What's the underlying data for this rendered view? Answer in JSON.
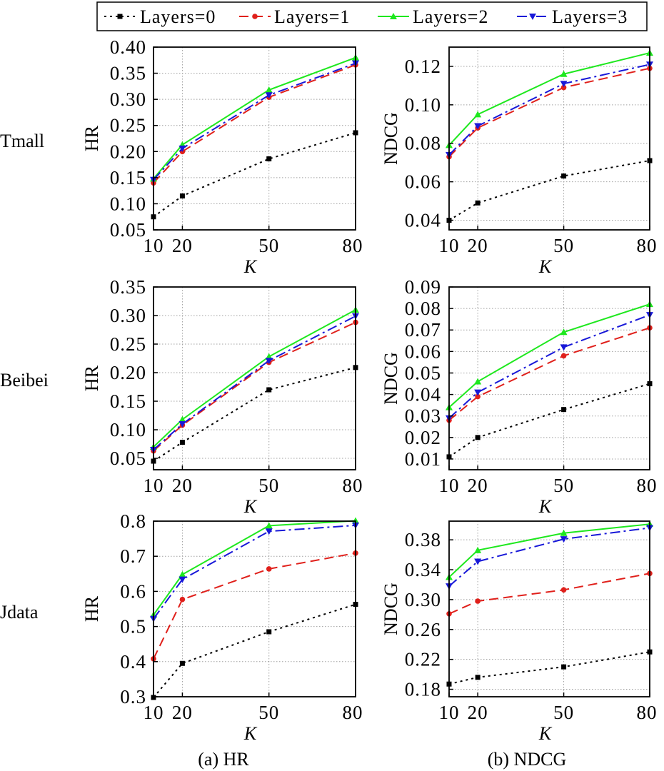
{
  "legend": [
    {
      "name": "Layers=0",
      "color": "#000000",
      "dash": "3,5",
      "marker": "square"
    },
    {
      "name": "Layers=1",
      "color": "#e0201b",
      "dash": "13,7",
      "marker": "circle"
    },
    {
      "name": "Layers=2",
      "color": "#1ee81e",
      "dash": "",
      "marker": "triangle-up"
    },
    {
      "name": "Layers=3",
      "color": "#1818d8",
      "dash": "14,5,3,5",
      "marker": "triangle-down"
    }
  ],
  "captions": {
    "hr": "(a) HR",
    "ndcg": "(b) NDCG"
  },
  "rows": [
    "Tmall",
    "Beibei",
    "Jdata"
  ],
  "chart_data": [
    {
      "type": "line",
      "row": "Tmall",
      "metric": "HR",
      "x": [
        10,
        20,
        50,
        80
      ],
      "xlim": [
        10,
        80
      ],
      "xticks": [
        "10",
        "20",
        "50",
        "80"
      ],
      "xlabel": "K",
      "ylabel": "HR",
      "ylim": [
        0.05,
        0.4
      ],
      "yticks": [
        "0.05",
        "0.10",
        "0.15",
        "0.20",
        "0.25",
        "0.30",
        "0.35",
        "0.40"
      ],
      "grid": true,
      "series": [
        {
          "name": "Layers=0",
          "values": [
            0.075,
            0.115,
            0.186,
            0.236
          ]
        },
        {
          "name": "Layers=1",
          "values": [
            0.14,
            0.2,
            0.304,
            0.366
          ]
        },
        {
          "name": "Layers=2",
          "values": [
            0.148,
            0.213,
            0.318,
            0.38
          ]
        },
        {
          "name": "Layers=3",
          "values": [
            0.146,
            0.206,
            0.308,
            0.369
          ]
        }
      ]
    },
    {
      "type": "line",
      "row": "Tmall",
      "metric": "NDCG",
      "x": [
        10,
        20,
        50,
        80
      ],
      "xlim": [
        10,
        80
      ],
      "xticks": [
        "10",
        "20",
        "50",
        "80"
      ],
      "xlabel": "K",
      "ylabel": "NDCG",
      "ylim": [
        0.035,
        0.13
      ],
      "yticks": [
        "0.04",
        "0.06",
        "0.08",
        "0.10",
        "0.12"
      ],
      "grid": true,
      "series": [
        {
          "name": "Layers=0",
          "values": [
            0.04,
            0.049,
            0.063,
            0.071
          ]
        },
        {
          "name": "Layers=1",
          "values": [
            0.073,
            0.088,
            0.109,
            0.119
          ]
        },
        {
          "name": "Layers=2",
          "values": [
            0.079,
            0.095,
            0.116,
            0.127
          ]
        },
        {
          "name": "Layers=3",
          "values": [
            0.074,
            0.089,
            0.111,
            0.121
          ]
        }
      ]
    },
    {
      "type": "line",
      "row": "Beibei",
      "metric": "HR",
      "x": [
        10,
        20,
        50,
        80
      ],
      "xlim": [
        10,
        80
      ],
      "xticks": [
        "10",
        "20",
        "50",
        "80"
      ],
      "xlabel": "K",
      "ylabel": "HR",
      "ylim": [
        0.03,
        0.35
      ],
      "yticks": [
        "0.05",
        "0.10",
        "0.15",
        "0.20",
        "0.25",
        "0.30",
        "0.35"
      ],
      "grid": true,
      "series": [
        {
          "name": "Layers=0",
          "values": [
            0.045,
            0.078,
            0.17,
            0.209
          ]
        },
        {
          "name": "Layers=1",
          "values": [
            0.063,
            0.108,
            0.218,
            0.288
          ]
        },
        {
          "name": "Layers=2",
          "values": [
            0.07,
            0.118,
            0.228,
            0.31
          ]
        },
        {
          "name": "Layers=3",
          "values": [
            0.065,
            0.11,
            0.221,
            0.299
          ]
        }
      ]
    },
    {
      "type": "line",
      "row": "Beibei",
      "metric": "NDCG",
      "x": [
        10,
        20,
        50,
        80
      ],
      "xlim": [
        10,
        80
      ],
      "xticks": [
        "10",
        "20",
        "50",
        "80"
      ],
      "xlabel": "K",
      "ylabel": "NDCG",
      "ylim": [
        0.005,
        0.09
      ],
      "yticks": [
        "0.01",
        "0.02",
        "0.03",
        "0.04",
        "0.05",
        "0.06",
        "0.07",
        "0.08",
        "0.09"
      ],
      "grid": true,
      "series": [
        {
          "name": "Layers=0",
          "values": [
            0.011,
            0.02,
            0.033,
            0.045
          ]
        },
        {
          "name": "Layers=1",
          "values": [
            0.028,
            0.039,
            0.058,
            0.071
          ]
        },
        {
          "name": "Layers=2",
          "values": [
            0.034,
            0.046,
            0.069,
            0.082
          ]
        },
        {
          "name": "Layers=3",
          "values": [
            0.029,
            0.041,
            0.062,
            0.077
          ]
        }
      ]
    },
    {
      "type": "line",
      "row": "Jdata",
      "metric": "HR",
      "x": [
        10,
        20,
        50,
        80
      ],
      "xlim": [
        10,
        80
      ],
      "xticks": [
        "10",
        "20",
        "50",
        "80"
      ],
      "xlabel": "K",
      "ylabel": "HR",
      "ylim": [
        0.3,
        0.8
      ],
      "yticks": [
        "0.3",
        "0.4",
        "0.5",
        "0.6",
        "0.7",
        "0.8"
      ],
      "grid": true,
      "series": [
        {
          "name": "Layers=0",
          "values": [
            0.298,
            0.395,
            0.485,
            0.563
          ]
        },
        {
          "name": "Layers=1",
          "values": [
            0.408,
            0.577,
            0.664,
            0.709
          ]
        },
        {
          "name": "Layers=2",
          "values": [
            0.533,
            0.648,
            0.787,
            0.801
          ]
        },
        {
          "name": "Layers=3",
          "values": [
            0.522,
            0.634,
            0.771,
            0.788
          ]
        }
      ]
    },
    {
      "type": "line",
      "row": "Jdata",
      "metric": "NDCG",
      "x": [
        10,
        20,
        50,
        80
      ],
      "xlim": [
        10,
        80
      ],
      "xticks": [
        "10",
        "20",
        "50",
        "80"
      ],
      "xlabel": "K",
      "ylabel": "NDCG",
      "ylim": [
        0.17,
        0.405
      ],
      "yticks": [
        "0.18",
        "0.22",
        "0.26",
        "0.30",
        "0.34",
        "0.38"
      ],
      "grid": true,
      "series": [
        {
          "name": "Layers=0",
          "values": [
            0.187,
            0.196,
            0.21,
            0.23
          ]
        },
        {
          "name": "Layers=1",
          "values": [
            0.281,
            0.298,
            0.313,
            0.335
          ]
        },
        {
          "name": "Layers=2",
          "values": [
            0.33,
            0.366,
            0.389,
            0.401
          ]
        },
        {
          "name": "Layers=3",
          "values": [
            0.318,
            0.351,
            0.381,
            0.396
          ]
        }
      ]
    }
  ]
}
